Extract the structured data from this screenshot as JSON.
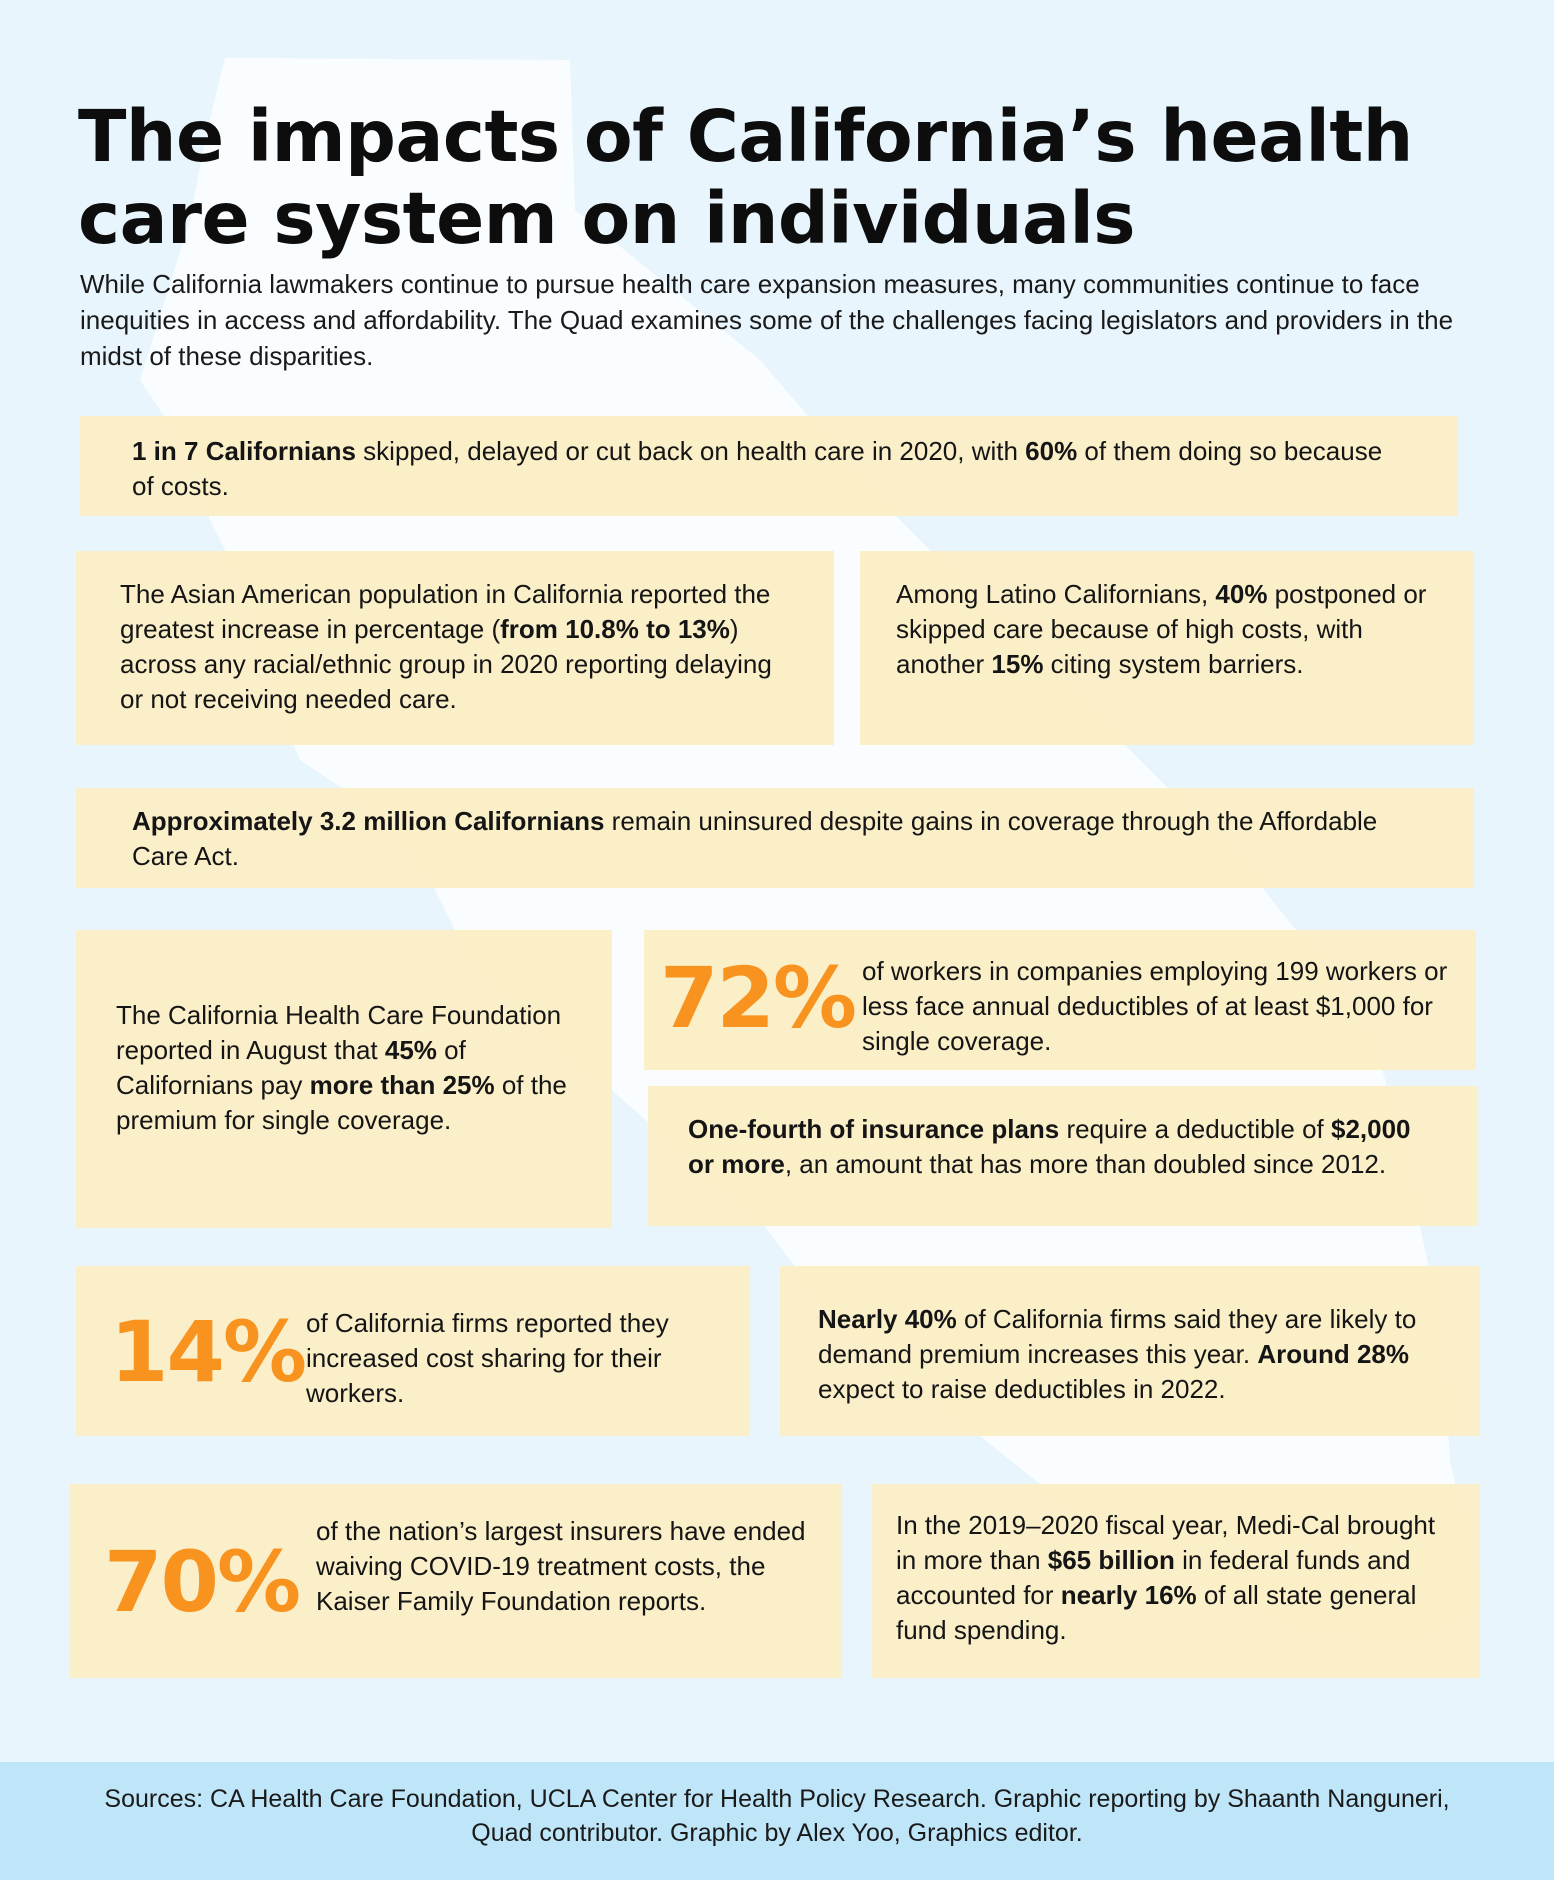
{
  "title": "The impacts of California’s health care system on individuals",
  "intro": "While California lawmakers continue to pursue health care expansion measures, many communities continue to face inequities in access and affordability. The Quad examines some of the challenges facing legislators and providers in the midst of these disparities.",
  "stats": {
    "s1": {
      "b1": "1 in 7 Californians",
      "t1": " skipped, delayed or cut back on health care in 2020, with ",
      "b2": "60%",
      "t2": " of them doing so because of costs."
    },
    "s2": {
      "t1": "The Asian American population in California reported the greatest increase in percentage (",
      "b1": "from 10.8% to 13%",
      "t2": ") across any racial/ethnic group in 2020 reporting delaying or not receiving needed care."
    },
    "s3": {
      "t1": "Among Latino Californians, ",
      "b1": "40%",
      "t2": " postponed or skipped care because of high costs, with another ",
      "b2": "15%",
      "t3": " citing system barriers."
    },
    "s4": {
      "b1": "Approximately 3.2 million Californians",
      "t1": " remain uninsured despite gains in coverage through the Affordable Care Act."
    },
    "s5": {
      "t1": "The California Health Care Foundation reported in August that ",
      "b1": "45%",
      "t2": " of Californians pay ",
      "b2": "more than 25%",
      "t3": " of the premium for single coverage."
    },
    "s6": {
      "big": "72%",
      "t1": "of workers in companies employing 199 workers or less face annual deductibles of at least $1,000 for single coverage."
    },
    "s7": {
      "b1": "One-fourth of insurance plans",
      "t1": " require a deductible of ",
      "b2": "$2,000 or more",
      "t2": ", an amount that has more than doubled since 2012."
    },
    "s8": {
      "big": "14%",
      "t1": "of California firms reported they increased cost sharing for their workers."
    },
    "s9": {
      "b1": "Nearly 40%",
      "t1": " of California firms said they are likely to demand premium increases this year. ",
      "b2": "Around 28%",
      "t2": " expect to raise deductibles in 2022."
    },
    "s10": {
      "big": "70%",
      "t1": "of the nation’s largest insurers have ended waiving COVID-19 treatment costs, the Kaiser Family Foundation reports."
    },
    "s11": {
      "t1": "In the 2019–2020 fiscal year, Medi-Cal brought in more than ",
      "b1": "$65 billion",
      "t2": " in federal funds and accounted for ",
      "b2": "nearly 16%",
      "t3": " of all state general fund spending."
    }
  },
  "sources": "Sources: CA Health Care Foundation, UCLA Center for Health Policy Research. Graphic reporting by Shaanth Nanguneri, Quad contributor. Graphic by Alex Yoo, Graphics editor.",
  "colors": {
    "background": "#e8f5fd",
    "map_silhouette": "#ffffff",
    "card": "#fbeec4",
    "accent": "#f7931e",
    "sources_bar": "#bfe6f8"
  },
  "icons": {
    "background": "california-map-silhouette"
  }
}
